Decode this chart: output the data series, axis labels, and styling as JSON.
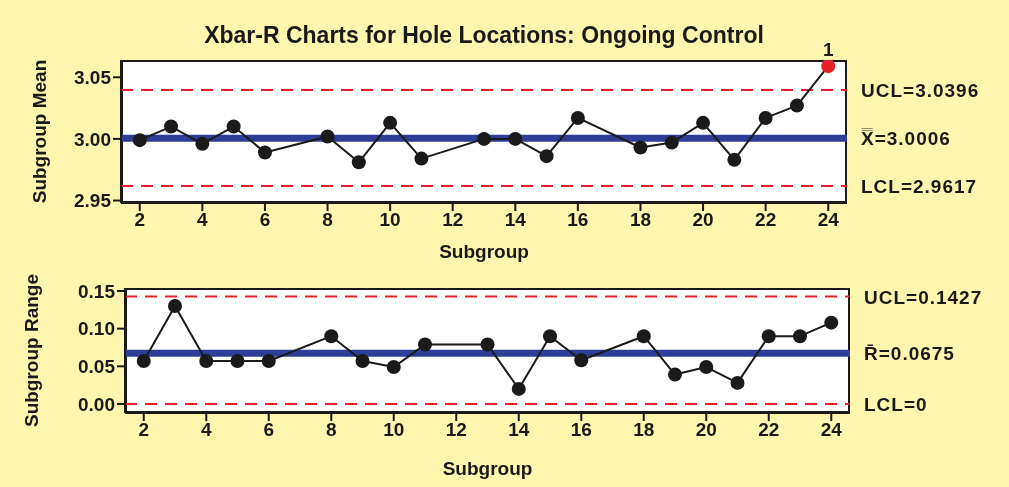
{
  "chart_data": [
    {
      "type": "line",
      "title": "Xbar-R Charts for Hole Locations: Ongoing Control",
      "xlabel": "Subgroup",
      "ylabel": "Subgroup Mean",
      "x": [
        2,
        3,
        4,
        5,
        6,
        8,
        9,
        10,
        11,
        13,
        14,
        15,
        16,
        18,
        19,
        20,
        21,
        22,
        23,
        24
      ],
      "series": [
        {
          "color": "#1a1a1a",
          "colors": [
            "#1a1a1a",
            "#1a1a1a",
            "#1a1a1a",
            "#1a1a1a",
            "#1a1a1a",
            "#1a1a1a",
            "#1a1a1a",
            "#1a1a1a",
            "#1a1a1a",
            "#1a1a1a",
            "#1a1a1a",
            "#1a1a1a",
            "#1a1a1a",
            "#1a1a1a",
            "#1a1a1a",
            "#1a1a1a",
            "#1a1a1a",
            "#1a1a1a",
            "#1a1a1a",
            "#e8202a"
          ],
          "values": [
            2.999,
            3.01,
            2.996,
            3.01,
            2.989,
            3.002,
            2.981,
            3.013,
            2.984,
            3.0,
            3.0,
            2.986,
            3.017,
            2.993,
            2.997,
            3.013,
            2.983,
            3.017,
            3.027,
            3.059
          ]
        }
      ],
      "xlim": [
        1.4,
        24.6
      ],
      "xticks": [
        2,
        4,
        6,
        8,
        10,
        12,
        14,
        16,
        18,
        20,
        22,
        24
      ],
      "ylim": [
        2.948,
        3.064
      ],
      "yticks": [
        {
          "value": 2.95,
          "label": "2.95"
        },
        {
          "value": 3,
          "label": "3.00"
        },
        {
          "value": 3.05,
          "label": "3.05"
        }
      ],
      "ref_lines": [
        {
          "axis": "y",
          "value": 3.0396,
          "label": "UCL=3.0396",
          "color": "#e8202a",
          "line_style": "dashed"
        },
        {
          "axis": "y",
          "value": 3.0006,
          "label": "X̿=3.0006",
          "color": "#2e3d96",
          "line_style": "solid"
        },
        {
          "axis": "y",
          "value": 2.9617,
          "label": "LCL=2.9617",
          "color": "#e8202a",
          "line_style": "dashed"
        }
      ],
      "annotations": [
        {
          "text": "1",
          "x": 24,
          "y": 3.059
        }
      ],
      "marker": "circle",
      "line_style": "solid",
      "grid": false,
      "legend": false
    },
    {
      "type": "line",
      "xlabel": "Subgroup",
      "ylabel": "Subgroup Range",
      "x": [
        2,
        3,
        4,
        5,
        6,
        8,
        9,
        10,
        11,
        13,
        14,
        15,
        16,
        18,
        19,
        20,
        21,
        22,
        23,
        24
      ],
      "series": [
        {
          "color": "#1a1a1a",
          "values": [
            0.057,
            0.13,
            0.057,
            0.057,
            0.057,
            0.09,
            0.057,
            0.049,
            0.079,
            0.079,
            0.02,
            0.09,
            0.058,
            0.09,
            0.039,
            0.049,
            0.028,
            0.09,
            0.09,
            0.108
          ]
        }
      ],
      "xlim": [
        1.4,
        24.6
      ],
      "xticks": [
        2,
        4,
        6,
        8,
        10,
        12,
        14,
        16,
        18,
        20,
        22,
        24
      ],
      "ylim": [
        -0.012,
        0.154
      ],
      "yticks": [
        {
          "value": 0,
          "label": "0.00"
        },
        {
          "value": 0.05,
          "label": "0.05"
        },
        {
          "value": 0.1,
          "label": "0.10"
        },
        {
          "value": 0.15,
          "label": "0.15"
        }
      ],
      "ref_lines": [
        {
          "axis": "y",
          "value": 0.1427,
          "label": "UCL=0.1427",
          "color": "#e8202a",
          "line_style": "dashed"
        },
        {
          "axis": "y",
          "value": 0.0675,
          "label": "R̄=0.0675",
          "color": "#2e3d96",
          "line_style": "solid"
        },
        {
          "axis": "y",
          "value": 0,
          "label": "LCL=0",
          "color": "#e8202a",
          "line_style": "dashed"
        }
      ],
      "marker": "circle",
      "line_style": "solid",
      "grid": false,
      "legend": false
    }
  ]
}
